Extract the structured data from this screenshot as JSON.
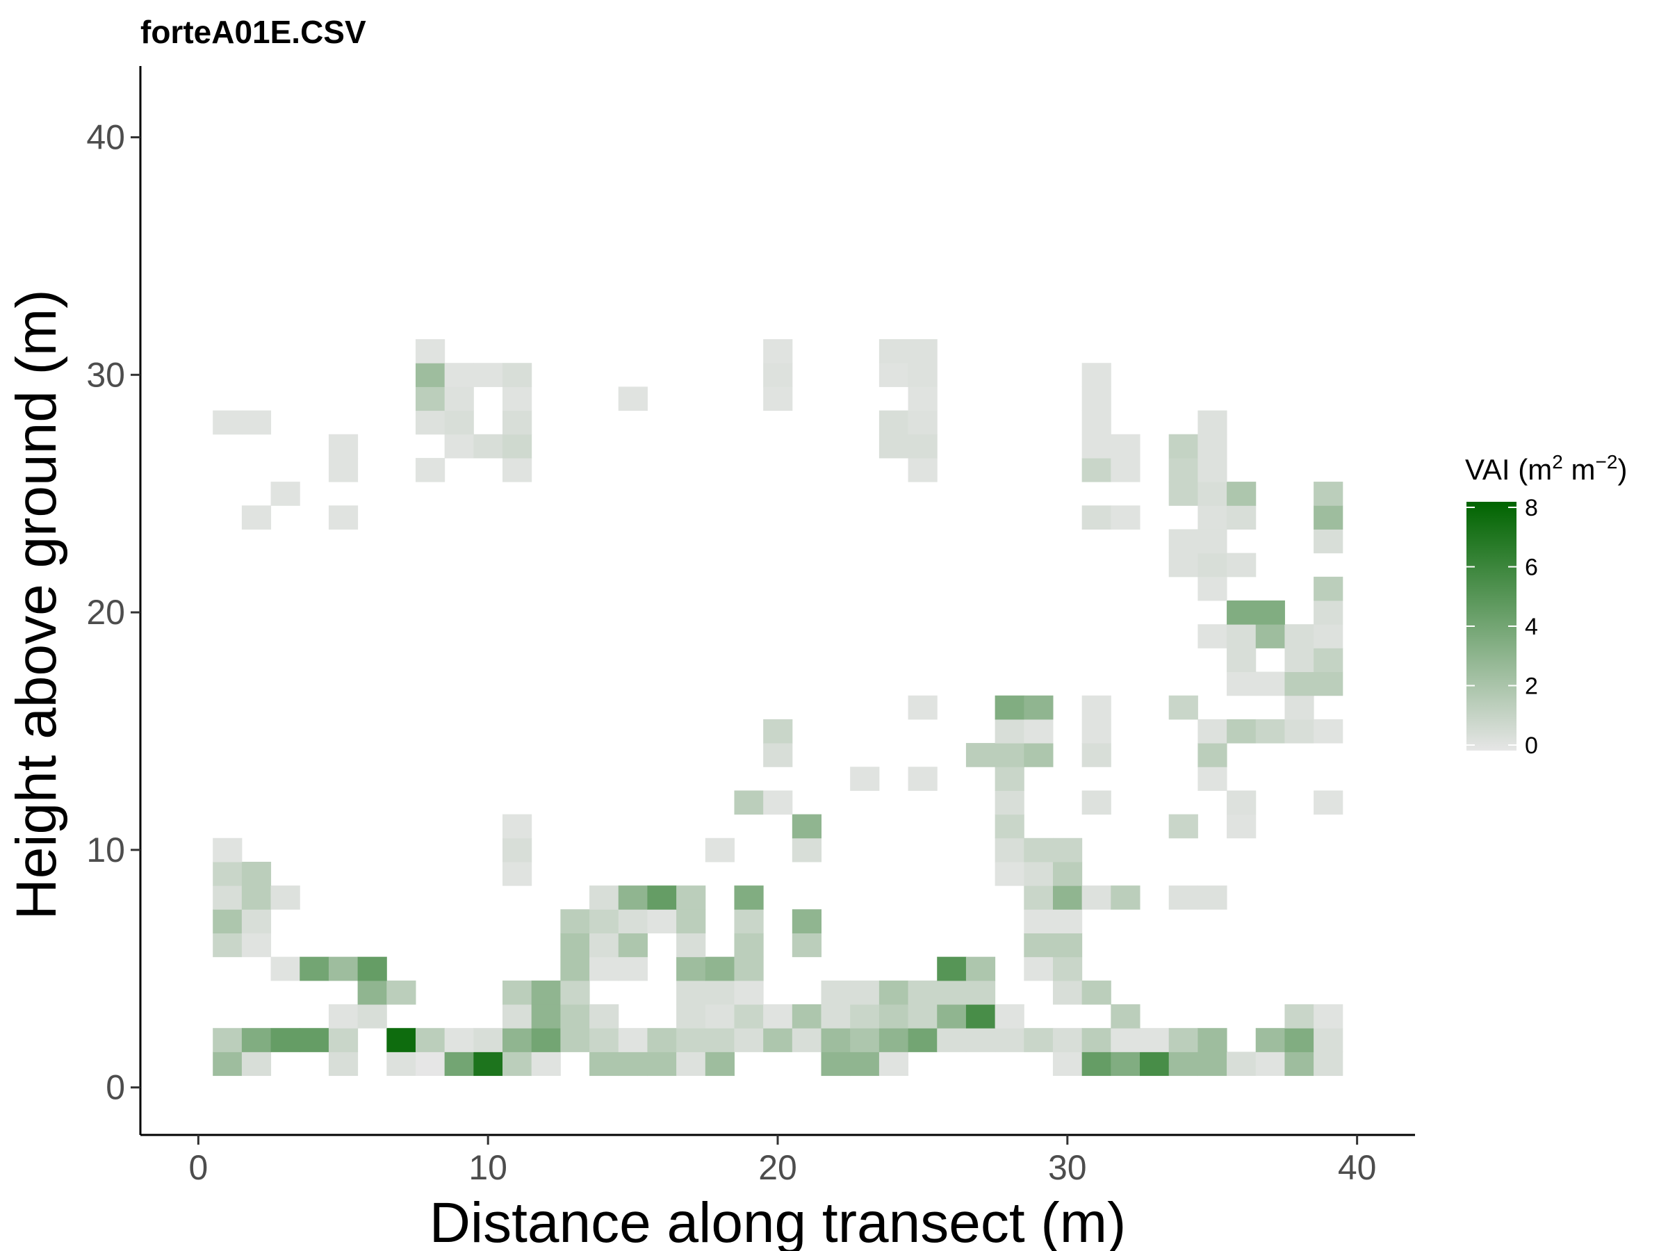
{
  "chart_data": {
    "type": "heatmap",
    "title": "forteA01E.CSV",
    "xlabel": "Distance along transect (m)",
    "ylabel": "Height above ground (m)",
    "xlim": [
      -2,
      42
    ],
    "ylim": [
      -2,
      43
    ],
    "x_ticks": [
      0,
      10,
      20,
      30,
      40
    ],
    "y_ticks": [
      0,
      10,
      20,
      30,
      40
    ],
    "grid": false,
    "cell_size_x": 1,
    "cell_size_y": 1,
    "legend": {
      "title": "VAI",
      "unit": "m",
      "exponents": [
        "2",
        "−2"
      ],
      "placement": "right",
      "range": [
        0,
        8
      ],
      "ticks": [
        0,
        2,
        4,
        6,
        8
      ],
      "low_color": "#e6e6e6",
      "high_color": "#006400"
    },
    "cells": [
      [
        1,
        1,
        2.5
      ],
      [
        2,
        1,
        0.5
      ],
      [
        5,
        1,
        0.5
      ],
      [
        7,
        1,
        0.3
      ],
      [
        8,
        1,
        0
      ],
      [
        9,
        1,
        4
      ],
      [
        10,
        1,
        7
      ],
      [
        11,
        1,
        1.5
      ],
      [
        12,
        1,
        0.2
      ],
      [
        14,
        1,
        2
      ],
      [
        15,
        1,
        2
      ],
      [
        16,
        1,
        2
      ],
      [
        17,
        1,
        0.3
      ],
      [
        18,
        1,
        2.5
      ],
      [
        22,
        1,
        3
      ],
      [
        23,
        1,
        3
      ],
      [
        24,
        1,
        0.2
      ],
      [
        30,
        1,
        0.2
      ],
      [
        31,
        1,
        4.5
      ],
      [
        32,
        1,
        3.5
      ],
      [
        33,
        1,
        5.5
      ],
      [
        34,
        1,
        2.5
      ],
      [
        35,
        1,
        2.5
      ],
      [
        36,
        1,
        0.5
      ],
      [
        37,
        1,
        0.2
      ],
      [
        38,
        1,
        2.5
      ],
      [
        39,
        1,
        0.5
      ],
      [
        1,
        2,
        1.5
      ],
      [
        2,
        2,
        3.5
      ],
      [
        3,
        2,
        4.5
      ],
      [
        4,
        2,
        4.5
      ],
      [
        5,
        2,
        1
      ],
      [
        7,
        2,
        7.5
      ],
      [
        8,
        2,
        1.5
      ],
      [
        9,
        2,
        0.2
      ],
      [
        10,
        2,
        0.5
      ],
      [
        11,
        2,
        3
      ],
      [
        12,
        2,
        4
      ],
      [
        13,
        2,
        1.5
      ],
      [
        14,
        2,
        1
      ],
      [
        15,
        2,
        0.2
      ],
      [
        16,
        2,
        1.5
      ],
      [
        17,
        2,
        1
      ],
      [
        18,
        2,
        1
      ],
      [
        19,
        2,
        0.5
      ],
      [
        20,
        2,
        2
      ],
      [
        21,
        2,
        0.5
      ],
      [
        22,
        2,
        2.5
      ],
      [
        23,
        2,
        2
      ],
      [
        24,
        2,
        3
      ],
      [
        25,
        2,
        4
      ],
      [
        26,
        2,
        0.5
      ],
      [
        27,
        2,
        0.5
      ],
      [
        28,
        2,
        0.5
      ],
      [
        29,
        2,
        1
      ],
      [
        30,
        2,
        0.5
      ],
      [
        31,
        2,
        1.5
      ],
      [
        32,
        2,
        0.2
      ],
      [
        33,
        2,
        0.2
      ],
      [
        34,
        2,
        1.5
      ],
      [
        35,
        2,
        2.5
      ],
      [
        37,
        2,
        2.5
      ],
      [
        38,
        2,
        3.5
      ],
      [
        39,
        2,
        0.5
      ],
      [
        5,
        3,
        0.2
      ],
      [
        6,
        3,
        0.5
      ],
      [
        11,
        3,
        0.5
      ],
      [
        12,
        3,
        3
      ],
      [
        13,
        3,
        1.5
      ],
      [
        14,
        3,
        0.5
      ],
      [
        17,
        3,
        0.5
      ],
      [
        18,
        3,
        0.3
      ],
      [
        19,
        3,
        1
      ],
      [
        20,
        3,
        0.2
      ],
      [
        21,
        3,
        2
      ],
      [
        22,
        3,
        0.5
      ],
      [
        23,
        3,
        1
      ],
      [
        24,
        3,
        1.5
      ],
      [
        25,
        3,
        1
      ],
      [
        26,
        3,
        3
      ],
      [
        27,
        3,
        5.5
      ],
      [
        28,
        3,
        0.2
      ],
      [
        32,
        3,
        1.5
      ],
      [
        38,
        3,
        1
      ],
      [
        39,
        3,
        0.2
      ],
      [
        6,
        4,
        3
      ],
      [
        7,
        4,
        1.5
      ],
      [
        11,
        4,
        1.5
      ],
      [
        12,
        4,
        3
      ],
      [
        13,
        4,
        1
      ],
      [
        17,
        4,
        0.5
      ],
      [
        18,
        4,
        0.5
      ],
      [
        19,
        4,
        0.2
      ],
      [
        22,
        4,
        0.5
      ],
      [
        23,
        4,
        0.5
      ],
      [
        24,
        4,
        2
      ],
      [
        25,
        4,
        1
      ],
      [
        26,
        4,
        1
      ],
      [
        27,
        4,
        1
      ],
      [
        30,
        4,
        0.5
      ],
      [
        31,
        4,
        1.5
      ],
      [
        3,
        5,
        0.2
      ],
      [
        4,
        5,
        4
      ],
      [
        5,
        5,
        2.5
      ],
      [
        6,
        5,
        4.5
      ],
      [
        13,
        5,
        2
      ],
      [
        14,
        5,
        0.2
      ],
      [
        15,
        5,
        0.2
      ],
      [
        17,
        5,
        2.5
      ],
      [
        18,
        5,
        3
      ],
      [
        19,
        5,
        1.5
      ],
      [
        26,
        5,
        5
      ],
      [
        27,
        5,
        2
      ],
      [
        29,
        5,
        0.2
      ],
      [
        30,
        5,
        1
      ],
      [
        1,
        6,
        1
      ],
      [
        2,
        6,
        0.2
      ],
      [
        13,
        6,
        2
      ],
      [
        14,
        6,
        0.5
      ],
      [
        15,
        6,
        2
      ],
      [
        17,
        6,
        0.5
      ],
      [
        19,
        6,
        1.5
      ],
      [
        21,
        6,
        1.5
      ],
      [
        29,
        6,
        1.5
      ],
      [
        30,
        6,
        1.5
      ],
      [
        1,
        7,
        2
      ],
      [
        2,
        7,
        0.5
      ],
      [
        13,
        7,
        1.5
      ],
      [
        14,
        7,
        1
      ],
      [
        15,
        7,
        0.5
      ],
      [
        16,
        7,
        0.2
      ],
      [
        17,
        7,
        1.5
      ],
      [
        19,
        7,
        1
      ],
      [
        21,
        7,
        3
      ],
      [
        29,
        7,
        0.2
      ],
      [
        30,
        7,
        0.2
      ],
      [
        1,
        8,
        0.5
      ],
      [
        2,
        8,
        1.5
      ],
      [
        3,
        8,
        0.3
      ],
      [
        14,
        8,
        0.5
      ],
      [
        15,
        8,
        3
      ],
      [
        16,
        8,
        4.5
      ],
      [
        17,
        8,
        1.5
      ],
      [
        19,
        8,
        3.5
      ],
      [
        29,
        8,
        1
      ],
      [
        30,
        8,
        3
      ],
      [
        31,
        8,
        0.3
      ],
      [
        32,
        8,
        1.5
      ],
      [
        34,
        8,
        0.3
      ],
      [
        35,
        8,
        0.3
      ],
      [
        1,
        9,
        1
      ],
      [
        2,
        9,
        1.5
      ],
      [
        11,
        9,
        0.2
      ],
      [
        28,
        9,
        0.2
      ],
      [
        29,
        9,
        0.5
      ],
      [
        30,
        9,
        1.5
      ],
      [
        1,
        10,
        0.2
      ],
      [
        11,
        10,
        0.5
      ],
      [
        18,
        10,
        0.2
      ],
      [
        21,
        10,
        0.5
      ],
      [
        28,
        10,
        0.5
      ],
      [
        29,
        10,
        1
      ],
      [
        30,
        10,
        1
      ],
      [
        11,
        11,
        0.2
      ],
      [
        21,
        11,
        3
      ],
      [
        28,
        11,
        1
      ],
      [
        34,
        11,
        1
      ],
      [
        36,
        11,
        0.2
      ],
      [
        19,
        12,
        1.5
      ],
      [
        20,
        12,
        0.2
      ],
      [
        28,
        12,
        0.5
      ],
      [
        31,
        12,
        0.3
      ],
      [
        36,
        12,
        0.3
      ],
      [
        39,
        12,
        0.2
      ],
      [
        23,
        13,
        0.2
      ],
      [
        25,
        13,
        0.2
      ],
      [
        28,
        13,
        1
      ],
      [
        35,
        13,
        0.2
      ],
      [
        20,
        14,
        0.5
      ],
      [
        27,
        14,
        1.5
      ],
      [
        28,
        14,
        1.5
      ],
      [
        29,
        14,
        2
      ],
      [
        31,
        14,
        0.5
      ],
      [
        35,
        14,
        1.5
      ],
      [
        20,
        15,
        1
      ],
      [
        28,
        15,
        0.5
      ],
      [
        29,
        15,
        0.2
      ],
      [
        31,
        15,
        0.2
      ],
      [
        35,
        15,
        0.3
      ],
      [
        36,
        15,
        1.5
      ],
      [
        37,
        15,
        1
      ],
      [
        38,
        15,
        0.5
      ],
      [
        39,
        15,
        0.2
      ],
      [
        25,
        16,
        0.2
      ],
      [
        28,
        16,
        3.5
      ],
      [
        29,
        16,
        3
      ],
      [
        31,
        16,
        0.2
      ],
      [
        34,
        16,
        1
      ],
      [
        38,
        16,
        0.3
      ],
      [
        36,
        17,
        0.2
      ],
      [
        37,
        17,
        0.2
      ],
      [
        38,
        17,
        1.5
      ],
      [
        39,
        17,
        1.5
      ],
      [
        36,
        18,
        0.5
      ],
      [
        38,
        18,
        0.5
      ],
      [
        39,
        18,
        1.2
      ],
      [
        35,
        19,
        0.2
      ],
      [
        36,
        19,
        0.5
      ],
      [
        37,
        19,
        2.5
      ],
      [
        38,
        19,
        0.5
      ],
      [
        39,
        19,
        0.3
      ],
      [
        36,
        20,
        3.5
      ],
      [
        37,
        20,
        3.5
      ],
      [
        39,
        20,
        0.5
      ],
      [
        39,
        21,
        1.5
      ],
      [
        35,
        21,
        0.2
      ],
      [
        34,
        22,
        0.3
      ],
      [
        35,
        22,
        0.5
      ],
      [
        36,
        22,
        0.3
      ],
      [
        34,
        23,
        0.3
      ],
      [
        35,
        23,
        0.3
      ],
      [
        39,
        23,
        0.5
      ],
      [
        2,
        24,
        0.2
      ],
      [
        5,
        24,
        0.2
      ],
      [
        31,
        24,
        0.5
      ],
      [
        32,
        24,
        0.2
      ],
      [
        35,
        24,
        0.3
      ],
      [
        36,
        24,
        0.5
      ],
      [
        39,
        24,
        2.5
      ],
      [
        3,
        25,
        0.2
      ],
      [
        34,
        25,
        1
      ],
      [
        35,
        25,
        0.5
      ],
      [
        36,
        25,
        2
      ],
      [
        39,
        25,
        1.5
      ],
      [
        5,
        26,
        0.2
      ],
      [
        8,
        26,
        0.2
      ],
      [
        11,
        26,
        0.2
      ],
      [
        25,
        26,
        0.2
      ],
      [
        31,
        26,
        1
      ],
      [
        32,
        26,
        0.2
      ],
      [
        34,
        26,
        1
      ],
      [
        35,
        26,
        0.3
      ],
      [
        5,
        27,
        0.2
      ],
      [
        9,
        27,
        0.2
      ],
      [
        10,
        27,
        0.5
      ],
      [
        11,
        27,
        0.8
      ],
      [
        24,
        27,
        0.5
      ],
      [
        25,
        27,
        0.5
      ],
      [
        31,
        27,
        0.2
      ],
      [
        32,
        27,
        0.2
      ],
      [
        34,
        27,
        1.2
      ],
      [
        35,
        27,
        0.3
      ],
      [
        1,
        28,
        0.2
      ],
      [
        2,
        28,
        0.2
      ],
      [
        8,
        28,
        0.3
      ],
      [
        9,
        28,
        0.5
      ],
      [
        11,
        28,
        0.5
      ],
      [
        24,
        28,
        0.5
      ],
      [
        25,
        28,
        0.3
      ],
      [
        31,
        28,
        0.2
      ],
      [
        35,
        28,
        0.3
      ],
      [
        8,
        29,
        1.5
      ],
      [
        9,
        29,
        0.3
      ],
      [
        11,
        29,
        0.2
      ],
      [
        15,
        29,
        0.2
      ],
      [
        20,
        29,
        0.2
      ],
      [
        25,
        29,
        0.2
      ],
      [
        31,
        29,
        0.2
      ],
      [
        8,
        30,
        2.5
      ],
      [
        9,
        30,
        0.2
      ],
      [
        10,
        30,
        0.2
      ],
      [
        11,
        30,
        0.5
      ],
      [
        24,
        30,
        0.2
      ],
      [
        25,
        30,
        0.3
      ],
      [
        20,
        30,
        0.3
      ],
      [
        31,
        30,
        0.2
      ],
      [
        8,
        31,
        0.2
      ],
      [
        20,
        31,
        0.2
      ],
      [
        24,
        31,
        0.3
      ],
      [
        25,
        31,
        0.3
      ]
    ]
  }
}
